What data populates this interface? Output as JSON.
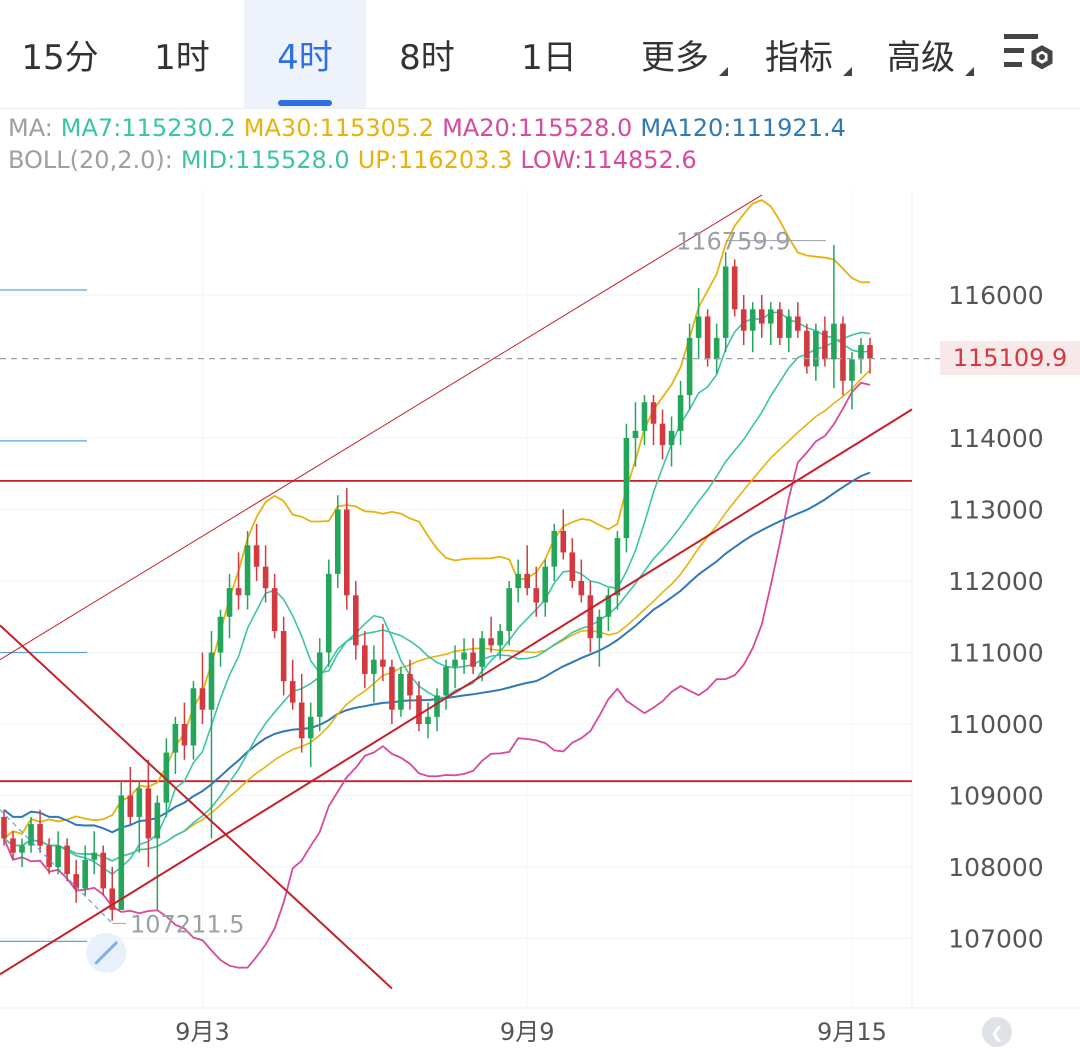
{
  "tabs": [
    {
      "label": "15分",
      "active": false
    },
    {
      "label": "1时",
      "active": false
    },
    {
      "label": "4时",
      "active": true
    },
    {
      "label": "8时",
      "active": false
    },
    {
      "label": "1日",
      "active": false
    },
    {
      "label": "更多",
      "active": false,
      "dropdown": true
    },
    {
      "label": "指标",
      "active": false,
      "dropdown": true
    },
    {
      "label": "高级",
      "active": false,
      "dropdown": true
    }
  ],
  "settings_icon": "chart-settings-icon",
  "legend": {
    "ma_label": "MA:",
    "ma": [
      {
        "text": "MA7:115230.2",
        "color": "#3cc4a6"
      },
      {
        "text": "MA30:115305.2",
        "color": "#e8b10e"
      },
      {
        "text": "MA20:115528.0",
        "color": "#d84a9b"
      },
      {
        "text": "MA120:111921.4",
        "color": "#2e79b9"
      }
    ],
    "boll_label": "BOLL(20,2.0):",
    "boll": [
      {
        "text": "MID:115528.0",
        "color": "#3cc4a6"
      },
      {
        "text": "UP:116203.3",
        "color": "#e8b10e"
      },
      {
        "text": "LOW:114852.6",
        "color": "#d84a9b"
      }
    ]
  },
  "current_price": "115109.9",
  "high_label": "116759.9",
  "low_label": "107211.5",
  "colors": {
    "up": "#23a55a",
    "down": "#d23a3f",
    "ma7": "#3cc4a6",
    "up_band": "#e8b10e",
    "low_band": "#d84a9b",
    "ma120": "#2e79b9",
    "trend": "#c61f2a"
  },
  "chart_data": {
    "type": "candlestick",
    "interval": "4时",
    "x_tick_labels": [
      "9月3",
      "9月9",
      "9月15"
    ],
    "y_tick_labels": [
      "116000",
      "114000",
      "113000",
      "112000",
      "111000",
      "110000",
      "109000",
      "108000",
      "107000"
    ],
    "ylim": [
      106400,
      117400
    ],
    "current_price": 115109.9,
    "annotated_high": 116759.9,
    "annotated_low": 107211.5,
    "horizontal_levels": [
      113400,
      109200
    ],
    "candles": [
      [
        108700,
        108800,
        108300,
        108400
      ],
      [
        108400,
        108500,
        108100,
        108200
      ],
      [
        108200,
        108400,
        108000,
        108300
      ],
      [
        108300,
        108700,
        108200,
        108600
      ],
      [
        108600,
        108800,
        108200,
        108300
      ],
      [
        108300,
        108400,
        107900,
        108000
      ],
      [
        108000,
        108500,
        107900,
        108300
      ],
      [
        108300,
        108400,
        107800,
        107900
      ],
      [
        107900,
        108100,
        107500,
        107700
      ],
      [
        107700,
        108300,
        107600,
        108100
      ],
      [
        108100,
        108500,
        107900,
        108200
      ],
      [
        108200,
        108300,
        107600,
        107700
      ],
      [
        107700,
        108000,
        107250,
        107400
      ],
      [
        107400,
        109200,
        107400,
        109000
      ],
      [
        109000,
        109400,
        108600,
        108700
      ],
      [
        108700,
        109200,
        108200,
        109100
      ],
      [
        109100,
        109500,
        108000,
        108400
      ],
      [
        108400,
        109000,
        107400,
        108900
      ],
      [
        108900,
        109800,
        108700,
        109600
      ],
      [
        109600,
        110100,
        109300,
        110000
      ],
      [
        110000,
        110300,
        109500,
        109700
      ],
      [
        109700,
        110600,
        109500,
        110500
      ],
      [
        110500,
        111000,
        110000,
        110200
      ],
      [
        110200,
        111300,
        108400,
        111000
      ],
      [
        111000,
        111600,
        110800,
        111500
      ],
      [
        111500,
        112100,
        111200,
        111900
      ],
      [
        111900,
        112400,
        111600,
        111800
      ],
      [
        111800,
        112700,
        111600,
        112500
      ],
      [
        112500,
        112800,
        112000,
        112200
      ],
      [
        112200,
        112500,
        111700,
        111900
      ],
      [
        111900,
        112100,
        111200,
        111300
      ],
      [
        111300,
        111500,
        110400,
        110600
      ],
      [
        110600,
        110900,
        110200,
        110300
      ],
      [
        110300,
        110700,
        109600,
        109800
      ],
      [
        109800,
        110300,
        109400,
        110100
      ],
      [
        110100,
        111200,
        109900,
        111000
      ],
      [
        111000,
        112300,
        110800,
        112100
      ],
      [
        112100,
        113200,
        111900,
        113000
      ],
      [
        113000,
        113300,
        111600,
        111800
      ],
      [
        111800,
        112000,
        110900,
        111100
      ],
      [
        111100,
        111300,
        110500,
        110700
      ],
      [
        110700,
        111100,
        110300,
        110900
      ],
      [
        110900,
        111400,
        110600,
        110800
      ],
      [
        110800,
        110900,
        110000,
        110200
      ],
      [
        110200,
        110800,
        110100,
        110700
      ],
      [
        110700,
        110900,
        110200,
        110400
      ],
      [
        110400,
        110600,
        109900,
        110000
      ],
      [
        110000,
        110300,
        109800,
        110100
      ],
      [
        110100,
        110500,
        109900,
        110400
      ],
      [
        110400,
        110900,
        110200,
        110800
      ],
      [
        110800,
        111100,
        110500,
        110900
      ],
      [
        110900,
        111200,
        110700,
        111000
      ],
      [
        111000,
        111200,
        110700,
        110800
      ],
      [
        110800,
        111300,
        110600,
        111200
      ],
      [
        111200,
        111500,
        111000,
        111100
      ],
      [
        111100,
        111400,
        110900,
        111300
      ],
      [
        111300,
        112000,
        111100,
        111900
      ],
      [
        111900,
        112300,
        111700,
        112100
      ],
      [
        112100,
        112500,
        111800,
        111900
      ],
      [
        111900,
        112200,
        111500,
        111700
      ],
      [
        111700,
        112300,
        111500,
        112200
      ],
      [
        112200,
        112800,
        112000,
        112700
      ],
      [
        112700,
        113000,
        112300,
        112400
      ],
      [
        112400,
        112600,
        111900,
        112000
      ],
      [
        112000,
        112300,
        111700,
        111800
      ],
      [
        111800,
        112000,
        111000,
        111200
      ],
      [
        111200,
        111600,
        110800,
        111500
      ],
      [
        111500,
        111900,
        111300,
        111800
      ],
      [
        111800,
        112700,
        111600,
        112600
      ],
      [
        112600,
        114200,
        112400,
        114000
      ],
      [
        114000,
        114500,
        113600,
        114100
      ],
      [
        114100,
        114600,
        113900,
        114500
      ],
      [
        114500,
        114600,
        113900,
        114200
      ],
      [
        114200,
        114400,
        113700,
        113900
      ],
      [
        113900,
        114300,
        113600,
        114100
      ],
      [
        114100,
        114800,
        113900,
        114600
      ],
      [
        114600,
        115600,
        114400,
        115400
      ],
      [
        115400,
        116100,
        115100,
        115700
      ],
      [
        115700,
        115800,
        115000,
        115100
      ],
      [
        115100,
        115600,
        114900,
        115400
      ],
      [
        115400,
        116600,
        115200,
        116400
      ],
      [
        116400,
        116500,
        115700,
        115800
      ],
      [
        115800,
        116000,
        115300,
        115500
      ],
      [
        115500,
        115900,
        115200,
        115800
      ],
      [
        115800,
        116000,
        115400,
        115600
      ],
      [
        115600,
        115900,
        115300,
        115800
      ],
      [
        115800,
        115900,
        115300,
        115400
      ],
      [
        115400,
        115800,
        115200,
        115700
      ],
      [
        115700,
        115900,
        115400,
        115500
      ],
      [
        115500,
        115600,
        114900,
        115000
      ],
      [
        115000,
        115600,
        114800,
        115500
      ],
      [
        115500,
        115700,
        115000,
        115100
      ],
      [
        115100,
        116700,
        114700,
        115600
      ],
      [
        115600,
        115700,
        114600,
        114800
      ],
      [
        114800,
        115200,
        114400,
        115100
      ],
      [
        115100,
        115400,
        114900,
        115300
      ],
      [
        115300,
        115400,
        114900,
        115110
      ]
    ]
  }
}
